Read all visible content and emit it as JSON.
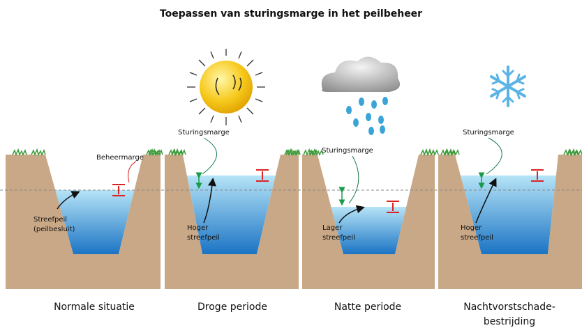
{
  "title": "Toepassen van sturingsmarge in het peilbeheer",
  "panels": [
    {
      "caption": [
        "Normale situatie"
      ],
      "margin_label": "Beheermarge",
      "level_label": [
        "Streefpeil",
        "(peilbesluit)"
      ]
    },
    {
      "caption": [
        "Droge periode"
      ],
      "margin_label": "Sturingsmarge",
      "level_label": [
        "Hoger",
        "streefpeil"
      ]
    },
    {
      "caption": [
        "Natte periode"
      ],
      "margin_label": "Sturingsmarge",
      "level_label": [
        "Lager",
        "streefpeil"
      ]
    },
    {
      "caption": [
        "Nachtvorstschade-",
        "bestrijding"
      ],
      "margin_label": "Sturingsmarge",
      "level_label": [
        "Hoger",
        "streefpeil"
      ]
    }
  ]
}
